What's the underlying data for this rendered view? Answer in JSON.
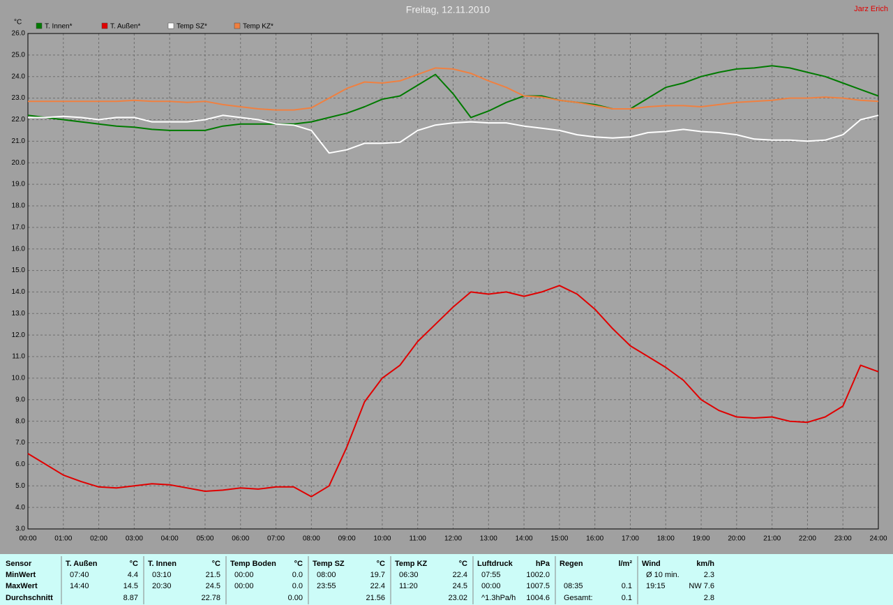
{
  "chart_data": {
    "type": "line",
    "title": "Freitag, 12.11.2010",
    "author": "Jarz Erich",
    "y_unit": "°C",
    "x": [
      0,
      0.5,
      1,
      1.5,
      2,
      2.5,
      3,
      3.5,
      4,
      4.5,
      5,
      5.5,
      6,
      6.5,
      7,
      7.5,
      8,
      8.5,
      9,
      9.5,
      10,
      10.5,
      11,
      11.5,
      12,
      12.5,
      13,
      13.5,
      14,
      14.5,
      15,
      15.5,
      16,
      16.5,
      17,
      17.5,
      18,
      18.5,
      19,
      19.5,
      20,
      20.5,
      21,
      21.5,
      22,
      22.5,
      23,
      23.5,
      24
    ],
    "xlim": [
      0,
      24
    ],
    "xticks": [
      {
        "value": 0,
        "label": "00:00"
      },
      {
        "value": 1,
        "label": "01:00"
      },
      {
        "value": 2,
        "label": "02:00"
      },
      {
        "value": 3,
        "label": "03:00"
      },
      {
        "value": 4,
        "label": "04:00"
      },
      {
        "value": 5,
        "label": "05:00"
      },
      {
        "value": 6,
        "label": "06:00"
      },
      {
        "value": 7,
        "label": "07:00"
      },
      {
        "value": 8,
        "label": "08:00"
      },
      {
        "value": 9,
        "label": "09:00"
      },
      {
        "value": 10,
        "label": "10:00"
      },
      {
        "value": 11,
        "label": "11:00"
      },
      {
        "value": 12,
        "label": "12:00"
      },
      {
        "value": 13,
        "label": "13:00"
      },
      {
        "value": 14,
        "label": "14:00"
      },
      {
        "value": 15,
        "label": "15:00"
      },
      {
        "value": 16,
        "label": "16:00"
      },
      {
        "value": 17,
        "label": "17:00"
      },
      {
        "value": 18,
        "label": "18:00"
      },
      {
        "value": 19,
        "label": "19:00"
      },
      {
        "value": 20,
        "label": "20:00"
      },
      {
        "value": 21,
        "label": "21:00"
      },
      {
        "value": 22,
        "label": "22:00"
      },
      {
        "value": 23,
        "label": "23:00"
      },
      {
        "value": 24,
        "label": "24:00"
      }
    ],
    "ylim": [
      3,
      26
    ],
    "yticks": [
      {
        "value": 3,
        "label": "3.0"
      },
      {
        "value": 4,
        "label": "4.0"
      },
      {
        "value": 5,
        "label": "5.0"
      },
      {
        "value": 6,
        "label": "6.0"
      },
      {
        "value": 7,
        "label": "7.0"
      },
      {
        "value": 8,
        "label": "8.0"
      },
      {
        "value": 9,
        "label": "9.0"
      },
      {
        "value": 10,
        "label": "10.0"
      },
      {
        "value": 11,
        "label": "11.0"
      },
      {
        "value": 12,
        "label": "12.0"
      },
      {
        "value": 13,
        "label": "13.0"
      },
      {
        "value": 14,
        "label": "14.0"
      },
      {
        "value": 15,
        "label": "15.0"
      },
      {
        "value": 16,
        "label": "16.0"
      },
      {
        "value": 17,
        "label": "17.0"
      },
      {
        "value": 18,
        "label": "18.0"
      },
      {
        "value": 19,
        "label": "19.0"
      },
      {
        "value": 20,
        "label": "20.0"
      },
      {
        "value": 21,
        "label": "21.0"
      },
      {
        "value": 22,
        "label": "22.0"
      },
      {
        "value": 23,
        "label": "23.0"
      },
      {
        "value": 24,
        "label": "24.0"
      },
      {
        "value": 25,
        "label": "25.0"
      },
      {
        "value": 26,
        "label": "26.0"
      }
    ],
    "grid": true,
    "legend": "top-left",
    "series": [
      {
        "name": "T. Innen*",
        "color": "#007a00",
        "values": [
          22.2,
          22.1,
          22.0,
          21.9,
          21.8,
          21.7,
          21.65,
          21.55,
          21.5,
          21.5,
          21.5,
          21.7,
          21.8,
          21.8,
          21.8,
          21.8,
          21.9,
          22.1,
          22.3,
          22.6,
          22.95,
          23.1,
          23.6,
          24.1,
          23.2,
          22.1,
          22.4,
          22.8,
          23.1,
          23.1,
          22.9,
          22.8,
          22.7,
          22.5,
          22.5,
          23.0,
          23.5,
          23.7,
          24.0,
          24.2,
          24.35,
          24.4,
          24.5,
          24.4,
          24.2,
          24.0,
          23.7,
          23.4,
          23.1
        ]
      },
      {
        "name": "T. Außen*",
        "color": "#e00000",
        "values": [
          6.5,
          6.0,
          5.5,
          5.2,
          4.95,
          4.9,
          5.0,
          5.1,
          5.05,
          4.9,
          4.75,
          4.8,
          4.9,
          4.85,
          4.95,
          4.95,
          4.5,
          5.0,
          6.8,
          8.9,
          10.0,
          10.6,
          11.7,
          12.5,
          13.3,
          14.0,
          13.9,
          14.0,
          13.8,
          14.0,
          14.3,
          13.9,
          13.2,
          12.3,
          11.5,
          11.0,
          10.5,
          9.9,
          9.0,
          8.5,
          8.2,
          8.15,
          8.2,
          8.0,
          7.95,
          8.2,
          8.7,
          10.6,
          10.3
        ]
      },
      {
        "name": "Temp SZ*",
        "color": "#ffffff",
        "values": [
          22.1,
          22.1,
          22.15,
          22.1,
          22.0,
          22.1,
          22.1,
          21.9,
          21.9,
          21.9,
          22.0,
          22.2,
          22.1,
          22.0,
          21.8,
          21.75,
          21.5,
          20.45,
          20.6,
          20.9,
          20.9,
          20.95,
          21.5,
          21.75,
          21.85,
          21.9,
          21.85,
          21.85,
          21.7,
          21.6,
          21.5,
          21.3,
          21.2,
          21.15,
          21.2,
          21.4,
          21.45,
          21.55,
          21.45,
          21.4,
          21.3,
          21.1,
          21.05,
          21.05,
          21.0,
          21.05,
          21.3,
          22.0,
          22.2
        ]
      },
      {
        "name": "Temp KZ*",
        "color": "#f08040",
        "values": [
          22.85,
          22.85,
          22.85,
          22.85,
          22.85,
          22.85,
          22.9,
          22.85,
          22.85,
          22.8,
          22.85,
          22.7,
          22.6,
          22.5,
          22.45,
          22.45,
          22.55,
          23.0,
          23.45,
          23.75,
          23.7,
          23.8,
          24.1,
          24.4,
          24.35,
          24.15,
          23.8,
          23.5,
          23.1,
          23.05,
          22.9,
          22.8,
          22.65,
          22.5,
          22.5,
          22.6,
          22.65,
          22.65,
          22.6,
          22.7,
          22.8,
          22.85,
          22.9,
          23.0,
          23.0,
          23.05,
          23.0,
          22.9,
          22.85
        ]
      }
    ]
  },
  "stats_table": {
    "row_labels": [
      "Sensor",
      "MinWert",
      "MaxWert",
      "Durchschnitt"
    ],
    "groups": [
      {
        "name": "T. Außen",
        "unit": "°C",
        "rows": [
          [
            "07:40",
            "4.4"
          ],
          [
            "14:40",
            "14.5"
          ],
          [
            null,
            "8.87"
          ]
        ]
      },
      {
        "name": "T. Innen",
        "unit": "°C",
        "rows": [
          [
            "03:10",
            "21.5"
          ],
          [
            "20:30",
            "24.5"
          ],
          [
            null,
            "22.78"
          ]
        ]
      },
      {
        "name": "Temp Boden",
        "unit": "°C",
        "rows": [
          [
            "00:00",
            "0.0"
          ],
          [
            "00:00",
            "0.0"
          ],
          [
            null,
            "0.00"
          ]
        ]
      },
      {
        "name": "Temp SZ",
        "unit": "°C",
        "rows": [
          [
            "08:00",
            "19.7"
          ],
          [
            "23:55",
            "22.4"
          ],
          [
            null,
            "21.56"
          ]
        ]
      },
      {
        "name": "Temp KZ",
        "unit": "°C",
        "rows": [
          [
            "06:30",
            "22.4"
          ],
          [
            "11:20",
            "24.5"
          ],
          [
            null,
            "23.02"
          ]
        ]
      },
      {
        "name": "Luftdruck",
        "unit": "hPa",
        "rows": [
          [
            "07:55",
            "1002.0"
          ],
          [
            "00:00",
            "1007.5"
          ],
          [
            "^1.3hPa/h",
            "1004.6"
          ]
        ]
      },
      {
        "name": "Regen",
        "unit": "l/m²",
        "rows": [
          [
            null,
            null
          ],
          [
            "08:35",
            "0.1"
          ],
          [
            "Gesamt:",
            "0.1"
          ]
        ]
      },
      {
        "name": "Wind",
        "unit": "km/h",
        "rows": [
          [
            "Ø 10 min.",
            "2.3"
          ],
          [
            "19:15",
            "NW 7.6"
          ],
          [
            null,
            "2.8"
          ]
        ]
      }
    ]
  }
}
